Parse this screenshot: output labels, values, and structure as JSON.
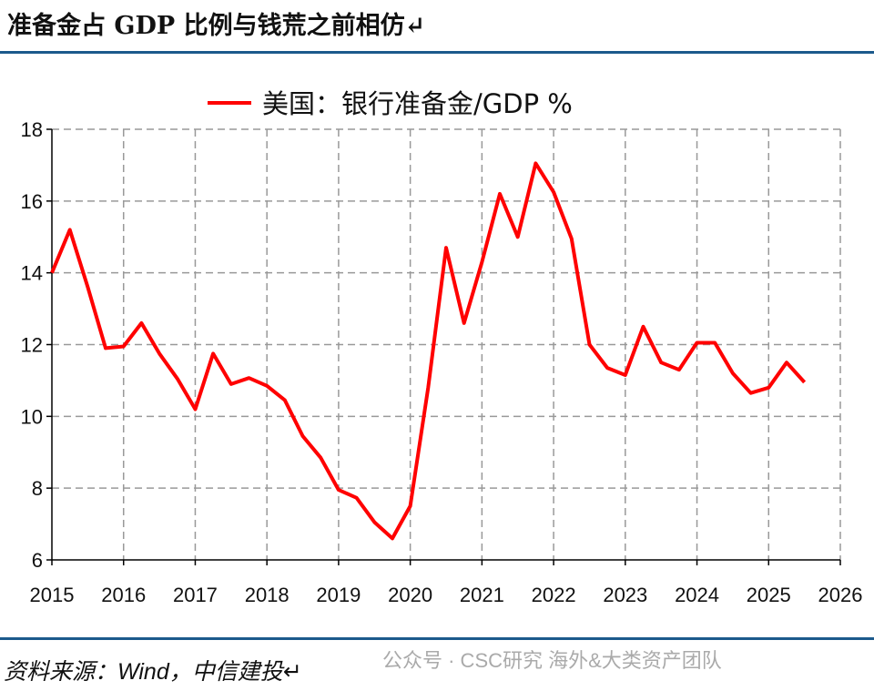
{
  "title": "准备金占 GDP 比例与钱荒之前相仿↵",
  "source": "资料来源：Wind，中信建投↵",
  "watermark": "公众号 · CSC研究 海外&大类资产团队",
  "chart_data": {
    "type": "line",
    "title": "",
    "xlabel": "",
    "ylabel": "",
    "xlim": [
      2015,
      2026
    ],
    "ylim": [
      6,
      18
    ],
    "x_ticks": [
      "2015",
      "2016",
      "2017",
      "2018",
      "2019",
      "2020",
      "2021",
      "2022",
      "2023",
      "2024",
      "2025",
      "2026"
    ],
    "y_ticks": [
      "6",
      "8",
      "10",
      "12",
      "14",
      "16",
      "18"
    ],
    "grid": true,
    "legend_position": "top",
    "series": [
      {
        "name": "美国：银行准备金/GDP %",
        "color": "#ff0000",
        "x": [
          2015.0,
          2015.25,
          2015.5,
          2015.75,
          2016.0,
          2016.25,
          2016.5,
          2016.75,
          2017.0,
          2017.25,
          2017.5,
          2017.75,
          2018.0,
          2018.25,
          2018.5,
          2018.75,
          2019.0,
          2019.25,
          2019.5,
          2019.75,
          2020.0,
          2020.25,
          2020.5,
          2020.75,
          2021.0,
          2021.25,
          2021.5,
          2021.75,
          2022.0,
          2022.25,
          2022.5,
          2022.75,
          2023.0,
          2023.25,
          2023.5,
          2023.75,
          2024.0,
          2024.25,
          2024.5,
          2024.75,
          2025.0,
          2025.25,
          2025.5
        ],
        "values": [
          14.0,
          15.2,
          13.6,
          11.9,
          11.95,
          12.6,
          11.75,
          11.05,
          10.2,
          11.75,
          10.9,
          11.07,
          10.85,
          10.45,
          9.45,
          8.85,
          7.95,
          7.73,
          7.05,
          6.6,
          7.5,
          10.8,
          14.7,
          12.6,
          14.3,
          16.2,
          15.0,
          17.05,
          16.25,
          14.95,
          12.0,
          11.35,
          11.15,
          12.5,
          11.5,
          11.3,
          12.05,
          12.05,
          11.2,
          10.65,
          10.8,
          11.5,
          10.95
        ]
      }
    ]
  }
}
